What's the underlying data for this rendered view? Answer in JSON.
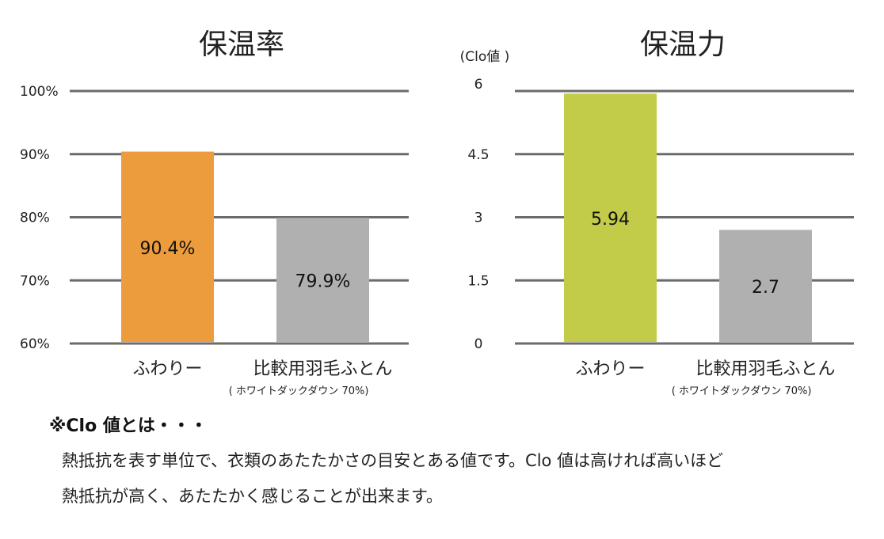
{
  "chart_data": [
    {
      "type": "bar",
      "title": "保温率",
      "ylabel": "",
      "ylim": [
        60,
        100
      ],
      "yticks": [
        "100%",
        "90%",
        "80%",
        "70%",
        "60%"
      ],
      "ytick_values": [
        100,
        90,
        80,
        70,
        60
      ],
      "grid": true,
      "categories": [
        "ふわりー",
        "比較用羽毛ふとん"
      ],
      "category_sublabels": [
        "",
        "( ホワイトダックダウン 70%)"
      ],
      "values": [
        90.4,
        79.9
      ],
      "data_labels": [
        "90.4%",
        "79.9%"
      ],
      "colors": [
        "#ec9c3c",
        "#b0b0b1"
      ]
    },
    {
      "type": "bar",
      "title": "保温力",
      "ylabel": "(Clo値 )",
      "ylim": [
        0,
        6
      ],
      "yticks": [
        "6",
        "4.5",
        "3",
        "1.5",
        "0"
      ],
      "ytick_values": [
        6,
        4.5,
        3,
        1.5,
        0
      ],
      "grid": true,
      "categories": [
        "ふわりー",
        "比較用羽毛ふとん"
      ],
      "category_sublabels": [
        "",
        "( ホワイトダックダウン 70%)"
      ],
      "values": [
        5.94,
        2.7
      ],
      "data_labels": [
        "5.94",
        "2.7"
      ],
      "colors": [
        "#c2cc48",
        "#b0b0b1"
      ]
    }
  ],
  "note": {
    "heading": "※Clo 値とは・・・",
    "lines": [
      "熱抵抗を表す単位で、衣類のあたたかさの目安とある値です。Clo 値は高ければ高いほど",
      "熱抵抗が高く、あたたかく感じることが出来ます。"
    ]
  }
}
